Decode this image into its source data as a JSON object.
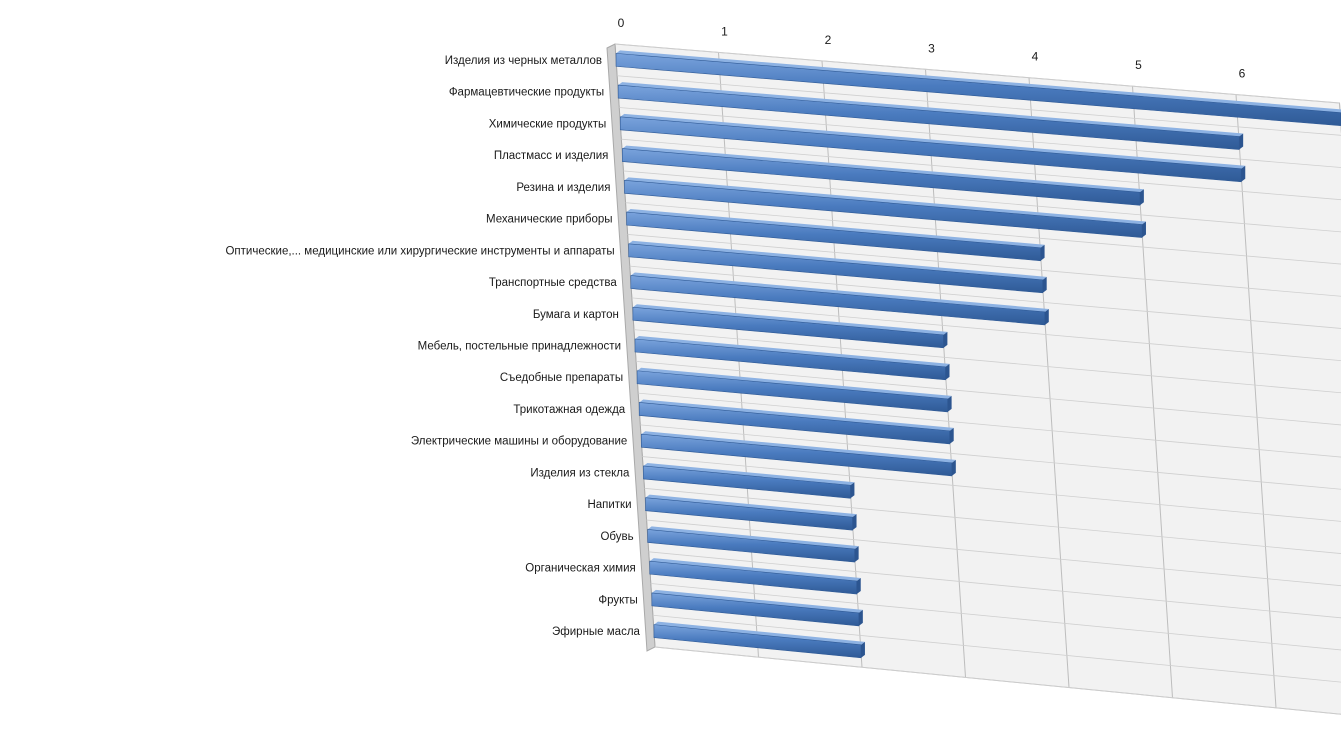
{
  "chart_data": {
    "type": "bar",
    "orientation": "horizontal",
    "style": "3d-perspective",
    "title": "",
    "xlabel": "",
    "ylabel": "",
    "xlim": [
      0,
      7
    ],
    "ticks": [
      "0",
      "1",
      "2",
      "3",
      "4",
      "5",
      "6"
    ],
    "grid": true,
    "legend": "none",
    "bar_color": "#4a7bbf",
    "categories": [
      "Изделия из черных металлов",
      "Фармацевтические продукты",
      "Химические продукты",
      "Пластмасс и изделия",
      "Резина и изделия",
      "Механические приборы",
      "Оптические,... медицинские или хирургические инструменты и аппараты",
      "Транспортные средства",
      "Бумага и картон",
      "Мебель, постельные принадлежности",
      "Съедобные препараты",
      "Трикотажная одежда",
      "Электрические машины и оборудование",
      "Изделия из стекла",
      "Напитки",
      "Обувь",
      "Органическая химия",
      "Фрукты",
      "Эфирные масла"
    ],
    "values": [
      7,
      6,
      6,
      5,
      5,
      4,
      4,
      4,
      3,
      3,
      3,
      3,
      3,
      2,
      2,
      2,
      2,
      2,
      2
    ]
  }
}
